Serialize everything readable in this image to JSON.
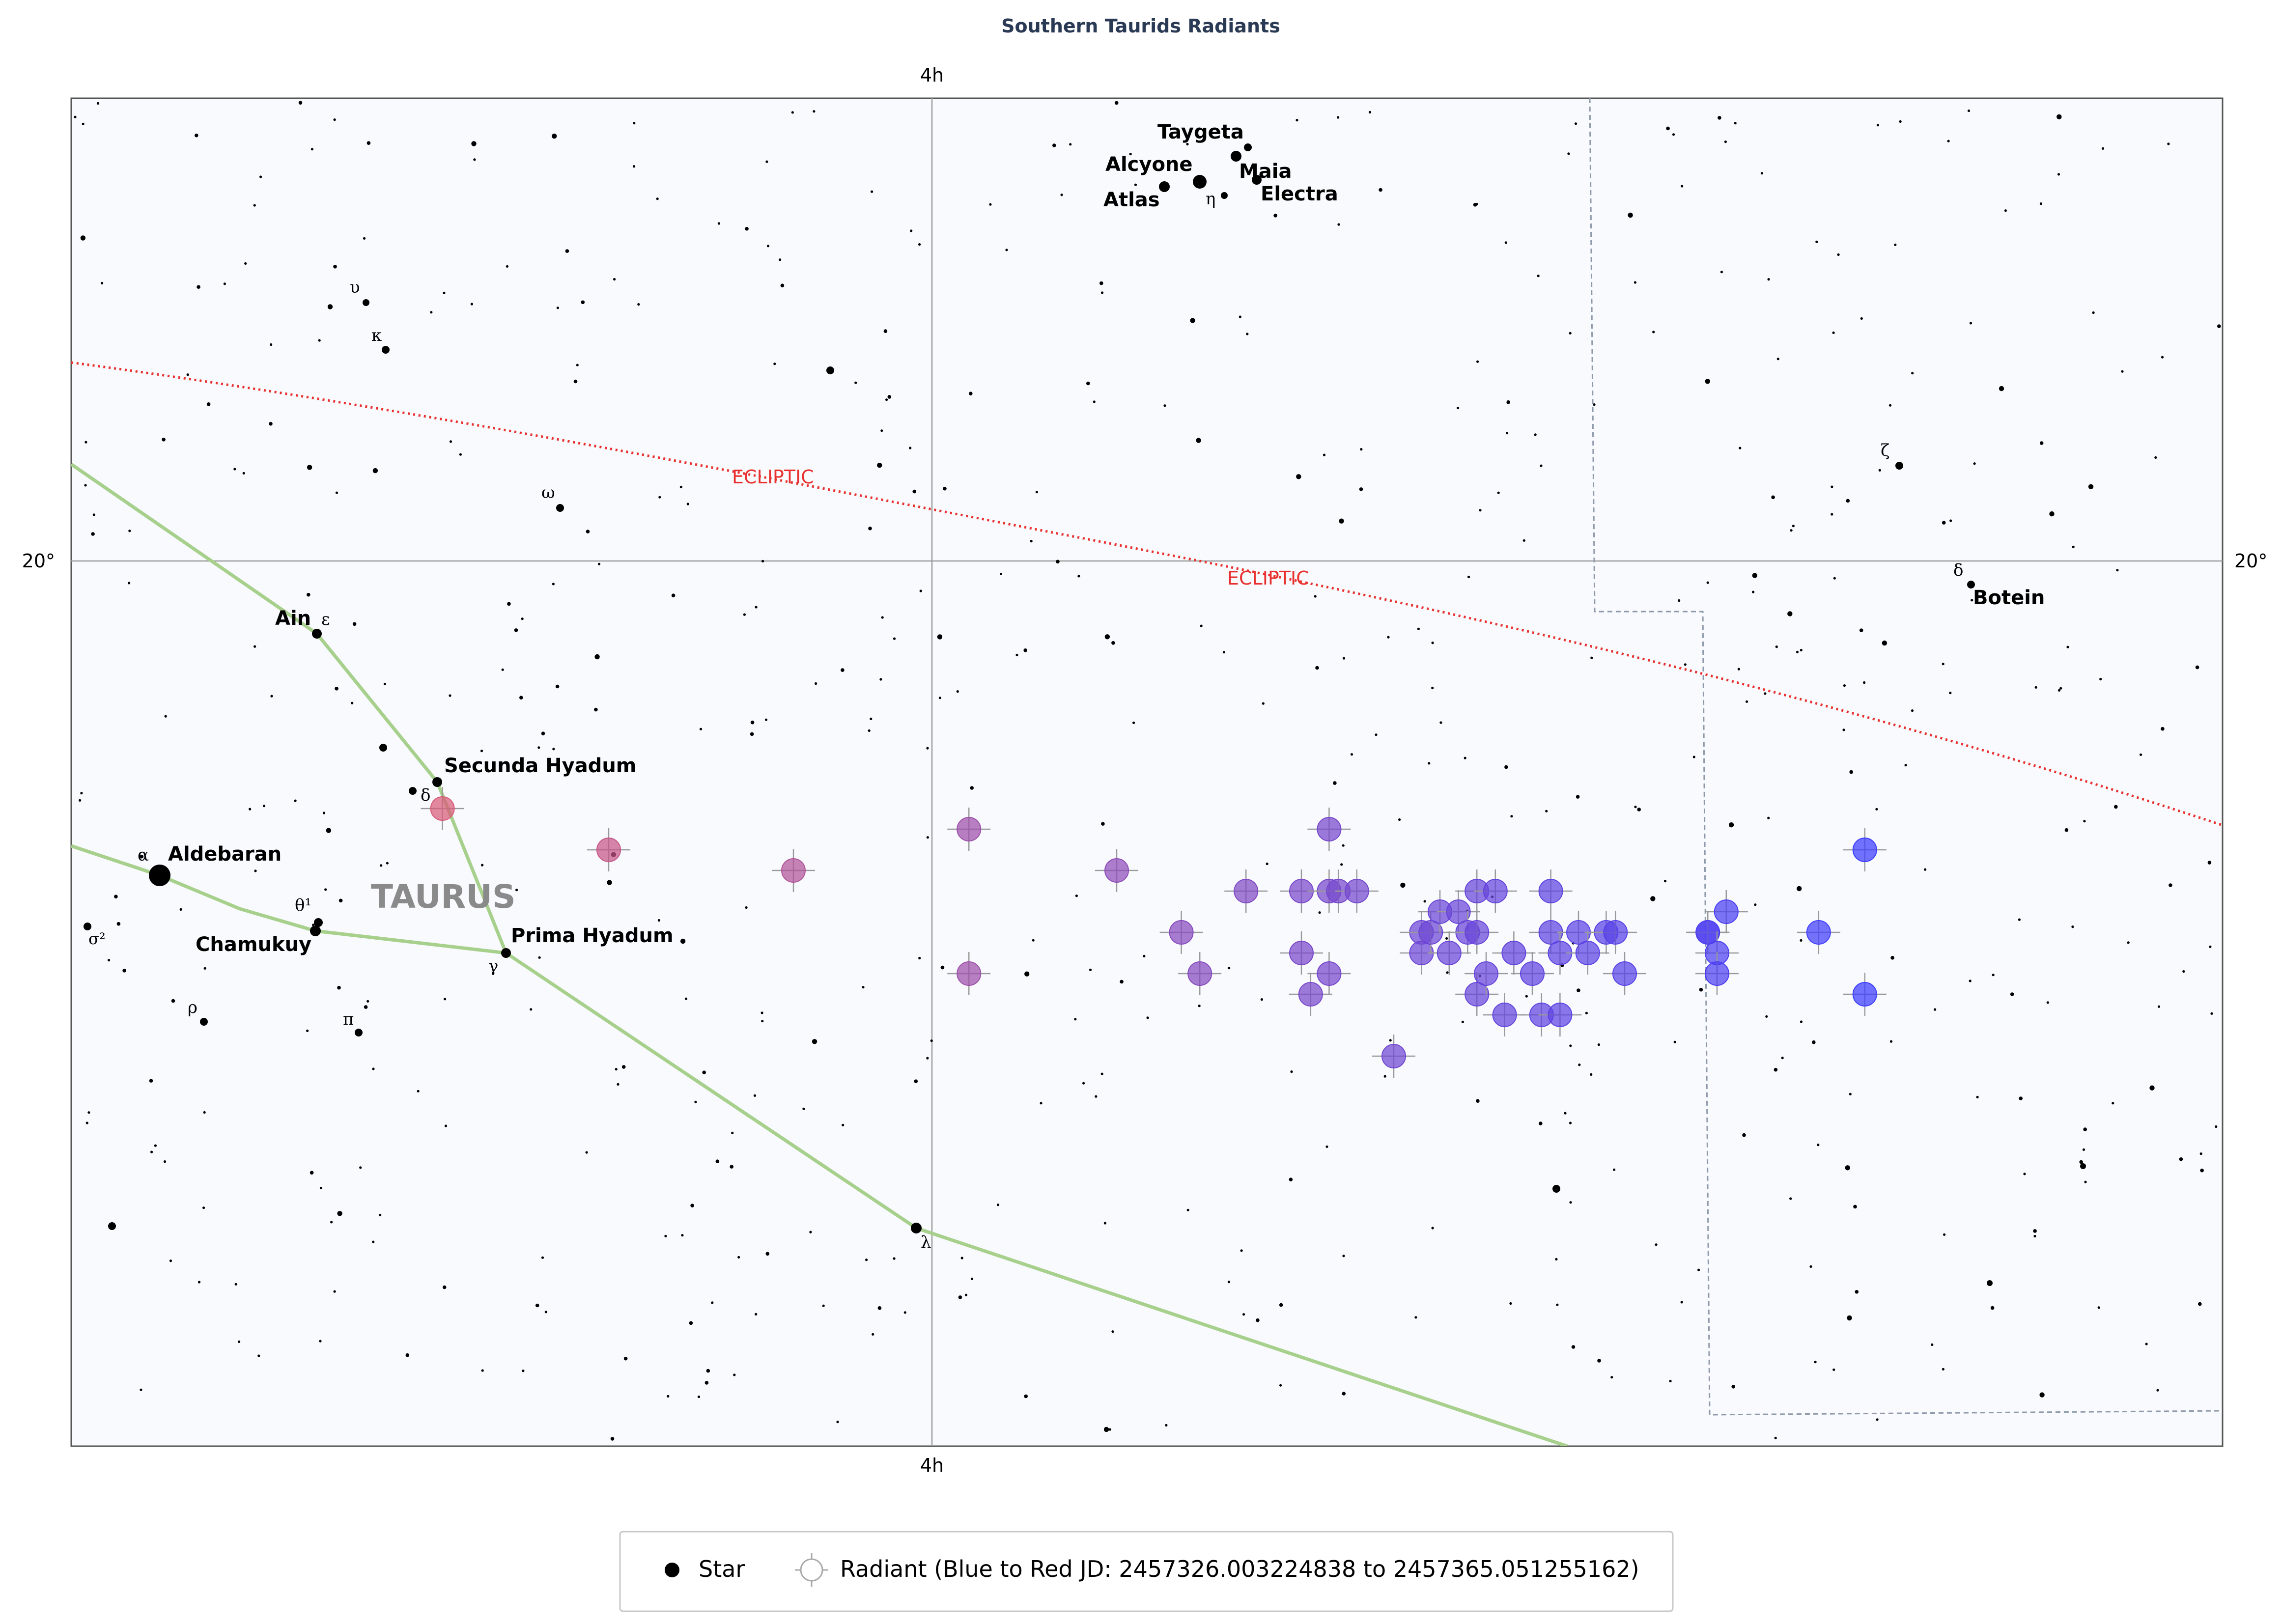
{
  "title": "Southern Taurids Radiants",
  "axes": {
    "ra_tick_top": "4h",
    "ra_tick_bottom": "4h",
    "dec_tick_left": "20°",
    "dec_tick_right": "20°"
  },
  "ecliptic_labels": [
    "ECLIPTIC",
    "ECLIPTIC"
  ],
  "constellation": "TAURUS",
  "named_stars": [
    "Taygeta",
    "Alcyone",
    "Maia",
    "Electra",
    "Atlas",
    "Ain",
    "Secunda Hyadum",
    "Aldebaran",
    "Chamukuy",
    "Prima Hyadum",
    "Botein"
  ],
  "greek_letters": [
    "υ",
    "κ",
    "ω",
    "ε",
    "δ",
    "α",
    "θ¹",
    "σ²",
    "γ",
    "ρ",
    "π",
    "λ",
    "η",
    "ζ",
    "δ"
  ],
  "legend": {
    "star_label": "Star",
    "radiant_label": "Radiant (Blue to Red JD: 2457326.003224838 to 2457365.051255162)"
  },
  "colors": {
    "background": "#f8fafe",
    "ecliptic": "#e8312e",
    "constellation_lines": "#a8d08d",
    "boundary": "#8e9aaa",
    "radiant_early": "#3c3cff",
    "radiant_late": "#d85a78"
  },
  "chart_data": {
    "type": "scatter",
    "title": "Southern Taurids Radiants",
    "series": [
      {
        "name": "Radiant (Blue to Red JD: 2457326.003224838 to 2457365.051255162)",
        "color_scale": [
          "#3c3cff",
          "#d85a78"
        ],
        "points": [
          {
            "ra": 4.53,
            "dec": 18.8
          },
          {
            "ra": 4.35,
            "dec": 18.6
          },
          {
            "ra": 4.15,
            "dec": 18.5
          },
          {
            "ra": 3.96,
            "dec": 18.7
          },
          {
            "ra": 3.96,
            "dec": 18.0
          },
          {
            "ra": 3.8,
            "dec": 18.5
          },
          {
            "ra": 3.73,
            "dec": 18.2
          },
          {
            "ra": 3.71,
            "dec": 18.0
          },
          {
            "ra": 3.66,
            "dec": 18.4
          },
          {
            "ra": 3.6,
            "dec": 18.4
          },
          {
            "ra": 3.6,
            "dec": 18.1
          },
          {
            "ra": 3.59,
            "dec": 17.9
          },
          {
            "ra": 3.57,
            "dec": 18.7
          },
          {
            "ra": 3.57,
            "dec": 18.4
          },
          {
            "ra": 3.57,
            "dec": 18.0
          },
          {
            "ra": 3.56,
            "dec": 18.4
          },
          {
            "ra": 3.54,
            "dec": 18.4
          },
          {
            "ra": 3.5,
            "dec": 17.6
          },
          {
            "ra": 3.47,
            "dec": 18.2
          },
          {
            "ra": 3.47,
            "dec": 18.1
          },
          {
            "ra": 3.46,
            "dec": 18.2
          },
          {
            "ra": 3.45,
            "dec": 18.3
          },
          {
            "ra": 3.44,
            "dec": 18.1
          },
          {
            "ra": 3.43,
            "dec": 18.3
          },
          {
            "ra": 3.42,
            "dec": 18.2
          },
          {
            "ra": 3.41,
            "dec": 18.4
          },
          {
            "ra": 3.41,
            "dec": 18.2
          },
          {
            "ra": 3.41,
            "dec": 17.9
          },
          {
            "ra": 3.4,
            "dec": 18.0
          },
          {
            "ra": 3.39,
            "dec": 18.4
          },
          {
            "ra": 3.38,
            "dec": 17.8
          },
          {
            "ra": 3.37,
            "dec": 18.1
          },
          {
            "ra": 3.35,
            "dec": 18.0
          },
          {
            "ra": 3.34,
            "dec": 17.8
          },
          {
            "ra": 3.33,
            "dec": 18.4
          },
          {
            "ra": 3.33,
            "dec": 18.2
          },
          {
            "ra": 3.32,
            "dec": 18.1
          },
          {
            "ra": 3.32,
            "dec": 17.8
          },
          {
            "ra": 3.3,
            "dec": 18.2
          },
          {
            "ra": 3.29,
            "dec": 18.1
          },
          {
            "ra": 3.27,
            "dec": 18.2
          },
          {
            "ra": 3.26,
            "dec": 18.2
          },
          {
            "ra": 3.25,
            "dec": 18.0
          },
          {
            "ra": 3.16,
            "dec": 18.2
          },
          {
            "ra": 3.16,
            "dec": 18.2
          },
          {
            "ra": 3.15,
            "dec": 18.1
          },
          {
            "ra": 3.15,
            "dec": 18.0
          },
          {
            "ra": 3.14,
            "dec": 18.3
          },
          {
            "ra": 3.04,
            "dec": 18.2
          },
          {
            "ra": 2.99,
            "dec": 17.9
          },
          {
            "ra": 2.99,
            "dec": 18.6
          }
        ]
      }
    ]
  }
}
